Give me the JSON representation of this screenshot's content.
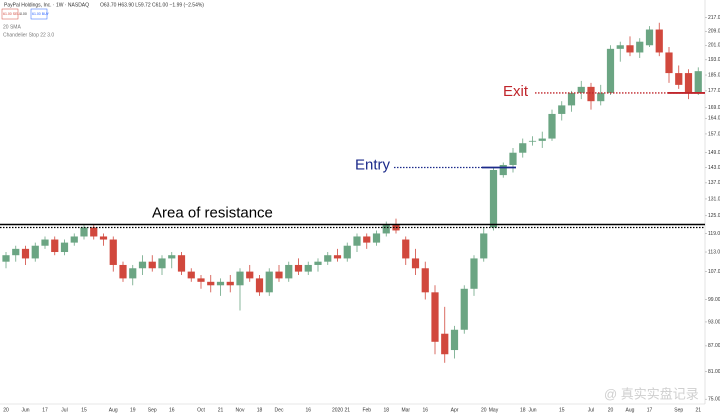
{
  "chart_data": {
    "type": "candlestick",
    "title": "PayPal Holdings, Inc. · 1W · NASDAQ",
    "ohlc_text": "O63.70 H63.90 L59.72 C61.00 −1.99 (−2.54%)",
    "sell_box": "61.00 SELL",
    "mid_box": "0.00",
    "buy_box": "61.00 BUY",
    "indicator_1": "20 SMA",
    "indicator_2": "Chandelier Stop 22 3.0",
    "watermark": "@ 真实实盘记录",
    "log_scale": true,
    "up_color": "#6ba583",
    "down_color": "#d1483d",
    "ylim": [
      74,
      228
    ],
    "yticks": [
      {
        "value": 217,
        "label": "217.00"
      },
      {
        "value": 209,
        "label": "209.00"
      },
      {
        "value": 201,
        "label": "201.00"
      },
      {
        "value": 193,
        "label": "193.00"
      },
      {
        "value": 185,
        "label": "185.00"
      },
      {
        "value": 177,
        "label": "177.00"
      },
      {
        "value": 169,
        "label": "169.00"
      },
      {
        "value": 164,
        "label": "164.00"
      },
      {
        "value": 157,
        "label": "157.00"
      },
      {
        "value": 149,
        "label": "149.00"
      },
      {
        "value": 143,
        "label": "143.00"
      },
      {
        "value": 137,
        "label": "137.00"
      },
      {
        "value": 131,
        "label": "131.00"
      },
      {
        "value": 125,
        "label": "125.00"
      },
      {
        "value": 119,
        "label": "119.00"
      },
      {
        "value": 113,
        "label": "113.00"
      },
      {
        "value": 107,
        "label": "107.00"
      },
      {
        "value": 99,
        "label": "99.00"
      },
      {
        "value": 93,
        "label": "93.00"
      },
      {
        "value": 87,
        "label": "87.00"
      },
      {
        "value": 81,
        "label": "81.00"
      },
      {
        "value": 75,
        "label": "75.00"
      }
    ],
    "categories": [
      "20",
      null,
      "Jun",
      null,
      "17",
      null,
      "Jul",
      null,
      "15",
      null,
      null,
      "Aug",
      null,
      "19",
      null,
      "Sep",
      null,
      "16",
      null,
      null,
      "Oct",
      null,
      "21",
      null,
      "Nov",
      null,
      "18",
      null,
      "Dec",
      null,
      null,
      "16",
      null,
      null,
      "2020",
      "21",
      null,
      "Feb",
      null,
      "18",
      null,
      "Mar",
      null,
      "16",
      null,
      null,
      "Apr",
      null,
      null,
      "20",
      "May",
      null,
      null,
      "18",
      "Jun",
      null,
      null,
      "15",
      null,
      null,
      "Jul",
      null,
      "20",
      null,
      "Aug",
      null,
      "17",
      null,
      null,
      "Sep",
      null,
      "21"
    ],
    "open": [
      110,
      112,
      114,
      111,
      115,
      117,
      113,
      116,
      118,
      121,
      118,
      117,
      109,
      105,
      108,
      110,
      108,
      111,
      112,
      107,
      105,
      104,
      103,
      104,
      103,
      107,
      105,
      101,
      107,
      105,
      109,
      107,
      109,
      110,
      112,
      111,
      115,
      118,
      116,
      119,
      122,
      117,
      111,
      108,
      101,
      90,
      86,
      91,
      102,
      111,
      121,
      140,
      144,
      149,
      154,
      154,
      155,
      166,
      170,
      176,
      179,
      172,
      176,
      199,
      201,
      197,
      201,
      210,
      197,
      186,
      186,
      176
    ],
    "high": [
      113,
      115,
      115,
      116,
      118,
      118,
      117,
      119,
      122,
      122,
      119,
      118,
      110,
      109,
      112,
      112,
      112,
      113,
      113,
      108,
      106,
      106,
      105,
      106,
      108,
      109,
      106,
      108,
      109,
      110,
      111,
      110,
      111,
      113,
      114,
      116,
      119,
      119,
      120,
      123,
      124,
      118,
      114,
      110,
      103,
      97,
      92,
      103,
      112,
      121,
      143,
      145,
      151,
      155,
      156,
      158,
      168,
      172,
      177,
      182,
      181,
      180,
      201,
      203,
      206,
      205,
      212,
      214,
      200,
      190,
      188,
      189
    ],
    "low": [
      108,
      110,
      109,
      110,
      114,
      112,
      112,
      115,
      117,
      117,
      115,
      107,
      104,
      103,
      106,
      107,
      106,
      108,
      106,
      104,
      102,
      101,
      100,
      101,
      96,
      104,
      100,
      100,
      104,
      104,
      106,
      106,
      107,
      109,
      110,
      110,
      113,
      114,
      115,
      118,
      119,
      109,
      106,
      99,
      85,
      83,
      84,
      90,
      100,
      110,
      120,
      139,
      141,
      147,
      152,
      151,
      154,
      163,
      167,
      173,
      168,
      170,
      175,
      192,
      195,
      194,
      200,
      195,
      181,
      178,
      173,
      175
    ],
    "close": [
      112,
      114,
      111,
      115,
      117,
      113,
      116,
      118,
      121,
      118,
      117,
      109,
      105,
      108,
      110,
      108,
      111,
      112,
      107,
      105,
      104,
      103,
      104,
      103,
      107,
      105,
      101,
      107,
      105,
      109,
      107,
      109,
      110,
      112,
      111,
      115,
      118,
      116,
      119,
      122,
      120,
      111,
      108,
      101,
      88,
      85,
      91,
      102,
      111,
      119,
      142,
      144,
      149,
      153,
      154,
      155,
      166,
      170,
      176,
      179,
      172,
      176,
      199,
      201,
      197,
      203,
      210,
      197,
      186,
      180,
      176,
      187
    ],
    "annotations": [
      {
        "text": "Area of resistance",
        "value": 122,
        "color": "#000000"
      },
      {
        "text": "Entry",
        "value": 143,
        "color": "#1b2a8a"
      },
      {
        "text": "Exit",
        "value": 176,
        "color": "#c0262c"
      }
    ]
  }
}
